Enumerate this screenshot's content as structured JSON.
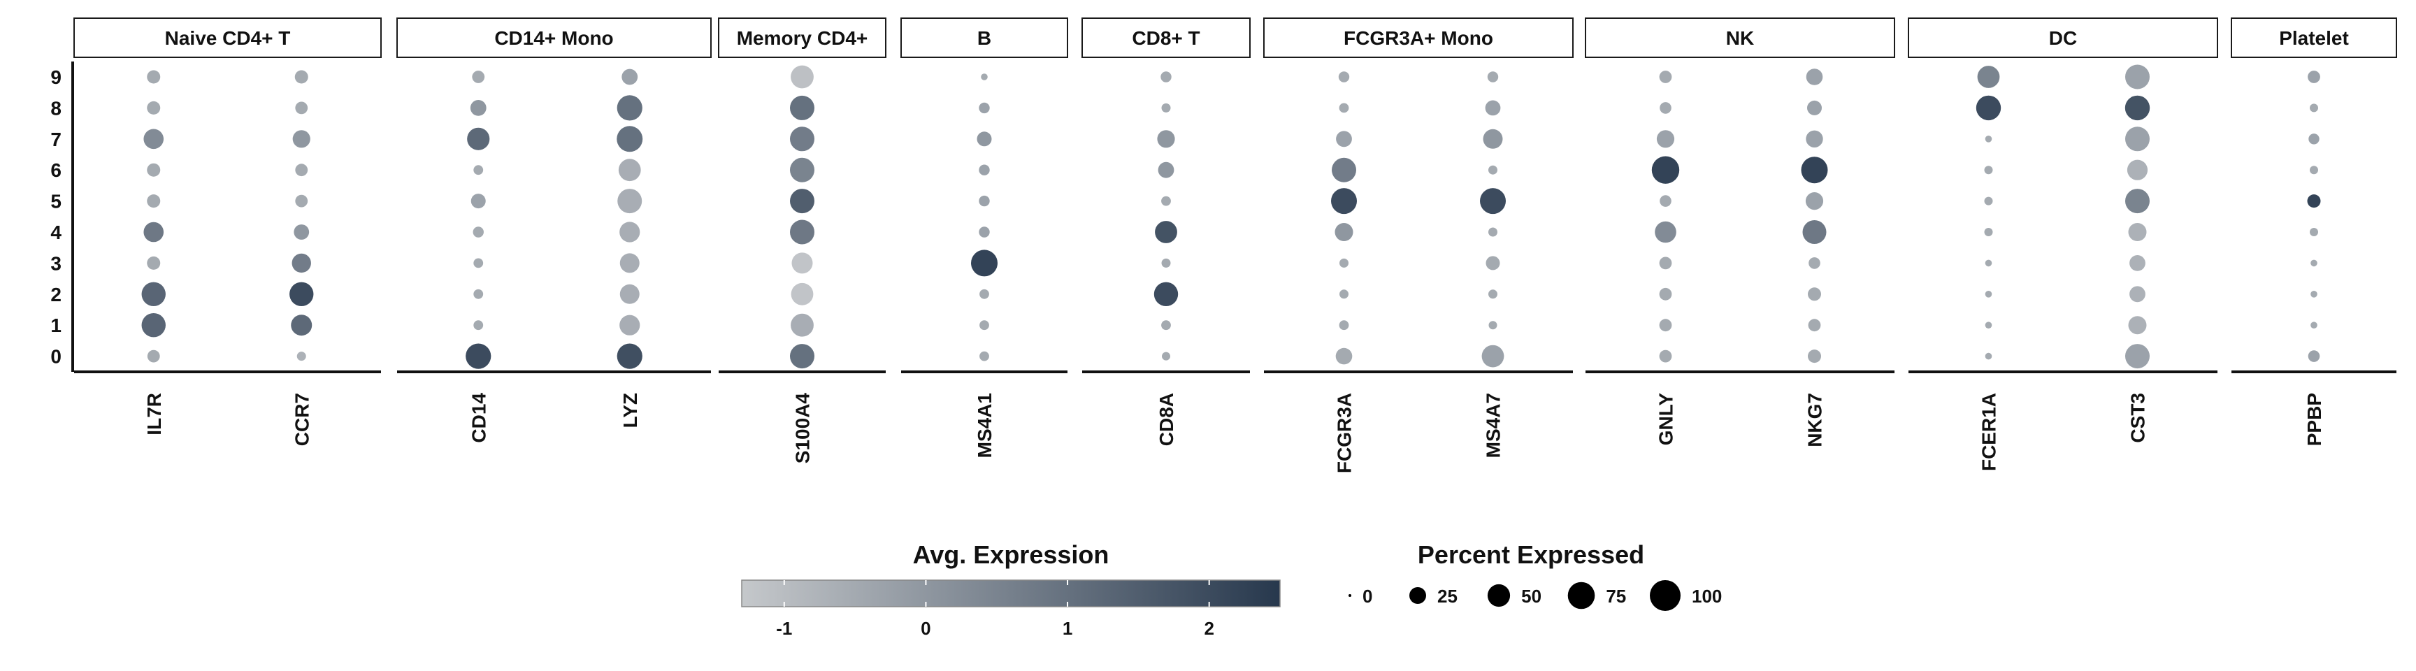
{
  "chart_data": {
    "type": "dot",
    "facets": [
      {
        "label": "Naive CD4+ T",
        "genes": [
          "IL7R",
          "CCR7"
        ]
      },
      {
        "label": "CD14+ Mono",
        "genes": [
          "CD14",
          "LYZ"
        ]
      },
      {
        "label": "Memory CD4+",
        "genes": [
          "S100A4"
        ]
      },
      {
        "label": "B",
        "genes": [
          "MS4A1"
        ]
      },
      {
        "label": "CD8+ T",
        "genes": [
          "CD8A"
        ]
      },
      {
        "label": "FCGR3A+ Mono",
        "genes": [
          "FCGR3A",
          "MS4A7"
        ]
      },
      {
        "label": "NK",
        "genes": [
          "GNLY",
          "NKG7"
        ]
      },
      {
        "label": "DC",
        "genes": [
          "FCER1A",
          "CST3"
        ]
      },
      {
        "label": "Platelet",
        "genes": [
          "PPBP"
        ]
      }
    ],
    "clusters": [
      "9",
      "8",
      "7",
      "6",
      "5",
      "4",
      "3",
      "2",
      "1",
      "0"
    ],
    "genes": {
      "IL7R": {
        "pct": [
          14,
          14,
          38,
          14,
          14,
          38,
          14,
          58,
          58,
          12
        ],
        "avg": [
          -0.5,
          -0.5,
          0.3,
          -0.5,
          -0.5,
          0.8,
          -0.5,
          1.3,
          1.3,
          -0.5
        ]
      },
      "CCR7": {
        "pct": [
          14,
          12,
          28,
          12,
          12,
          20,
          34,
          58,
          42,
          5
        ],
        "avg": [
          -0.5,
          -0.5,
          0.0,
          -0.5,
          -0.5,
          0.0,
          0.7,
          2.0,
          1.2,
          -0.7
        ]
      },
      "CD14": {
        "pct": [
          12,
          22,
          50,
          6,
          18,
          8,
          6,
          6,
          6,
          65
        ],
        "avg": [
          -0.5,
          0.0,
          1.2,
          -0.5,
          -0.3,
          -0.5,
          -0.5,
          -0.5,
          -0.5,
          2.0
        ]
      },
      "LYZ": {
        "pct": [
          22,
          65,
          68,
          48,
          60,
          40,
          36,
          36,
          40,
          65
        ],
        "avg": [
          -0.3,
          1.0,
          1.0,
          -0.6,
          -0.6,
          -0.6,
          -0.6,
          -0.6,
          -0.6,
          1.9
        ]
      },
      "S100A4": {
        "pct": [
          52,
          60,
          60,
          60,
          60,
          60,
          42,
          48,
          52,
          60
        ],
        "avg": [
          -1.1,
          1.0,
          0.7,
          0.5,
          1.5,
          0.8,
          -1.2,
          -1.2,
          -0.6,
          1.0
        ]
      },
      "MS4A1": {
        "pct": [
          2,
          8,
          18,
          8,
          8,
          8,
          72,
          6,
          6,
          6
        ],
        "avg": [
          -0.5,
          -0.3,
          0.0,
          -0.3,
          -0.3,
          -0.3,
          2.2,
          -0.5,
          -0.5,
          -0.5
        ]
      },
      "CD8A": {
        "pct": [
          8,
          5,
          28,
          22,
          6,
          48,
          5,
          58,
          6,
          4
        ],
        "avg": [
          -0.5,
          -0.5,
          0.0,
          0.0,
          -0.5,
          1.8,
          -0.5,
          2.0,
          -0.5,
          -0.5
        ]
      },
      "FCGR3A": {
        "pct": [
          8,
          6,
          22,
          60,
          68,
          30,
          5,
          5,
          6,
          24
        ],
        "avg": [
          -0.5,
          -0.5,
          -0.3,
          0.7,
          2.0,
          0.0,
          -0.5,
          -0.5,
          -0.5,
          -0.5
        ]
      },
      "MS4A7": {
        "pct": [
          8,
          20,
          36,
          5,
          68,
          5,
          16,
          5,
          4,
          48
        ],
        "avg": [
          -0.5,
          -0.3,
          0.0,
          -0.5,
          2.0,
          -0.5,
          -0.5,
          -0.5,
          -0.5,
          -0.3
        ]
      },
      "GNLY": {
        "pct": [
          12,
          10,
          28,
          78,
          10,
          44,
          12,
          12,
          12,
          12
        ],
        "avg": [
          -0.5,
          -0.5,
          -0.3,
          2.2,
          -0.5,
          0.3,
          -0.5,
          -0.5,
          -0.5,
          -0.5
        ]
      },
      "NKG7": {
        "pct": [
          24,
          18,
          26,
          72,
          28,
          56,
          10,
          14,
          12,
          14
        ],
        "avg": [
          -0.3,
          -0.3,
          -0.3,
          2.2,
          -0.3,
          0.8,
          -0.5,
          -0.5,
          -0.5,
          -0.5
        ]
      },
      "FCER1A": {
        "pct": [
          48,
          62,
          2,
          4,
          4,
          4,
          2,
          2,
          2,
          2
        ],
        "avg": [
          0.5,
          2.0,
          -0.5,
          -0.5,
          -0.5,
          -0.5,
          -0.5,
          -0.5,
          -0.5,
          -0.5
        ]
      },
      "CST3": {
        "pct": [
          60,
          62,
          60,
          40,
          60,
          30,
          22,
          22,
          30,
          60
        ],
        "avg": [
          -0.3,
          1.8,
          -0.3,
          -0.7,
          0.5,
          -0.7,
          -0.7,
          -0.7,
          -0.7,
          -0.3
        ]
      },
      "PPBP": {
        "pct": [
          12,
          4,
          8,
          4,
          14,
          4,
          2,
          2,
          2,
          10
        ],
        "avg": [
          -0.3,
          -0.5,
          -0.3,
          -0.5,
          2.2,
          -0.5,
          -0.5,
          -0.5,
          -0.5,
          -0.3
        ]
      }
    },
    "color_legend": {
      "title": "Avg. Expression",
      "ticks": [
        -1,
        0,
        1,
        2
      ],
      "range": [
        -1.3,
        2.5
      ],
      "low_color": "#c5c8cb",
      "high_color": "#27384d"
    },
    "size_legend": {
      "title": "Percent Expressed",
      "ticks": [
        0,
        25,
        50,
        75,
        100
      ]
    }
  }
}
